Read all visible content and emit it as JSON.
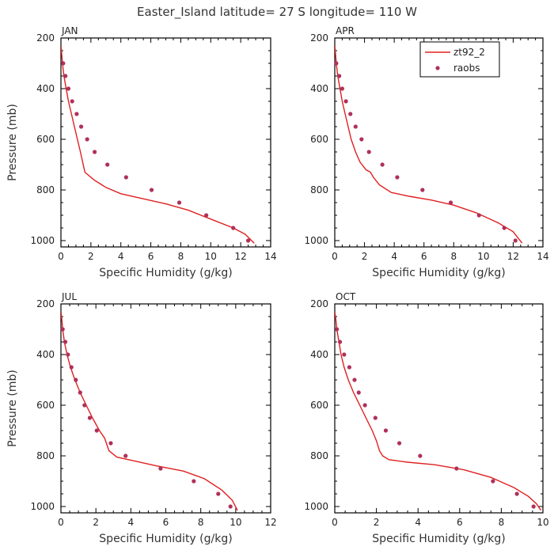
{
  "figure": {
    "title": "Easter_Island  latitude= 27 S longitude= 110 W"
  },
  "colors": {
    "model_line": "#e02020",
    "raobs": "#b0305a",
    "axis": "#000000"
  },
  "legend": {
    "panel": "APR",
    "position": "top-right",
    "entries": [
      {
        "label": "zt92_2",
        "kind": "line"
      },
      {
        "label": "raobs",
        "kind": "marker"
      }
    ]
  },
  "chart_data": [
    {
      "type": "line",
      "panel_title": "JAN",
      "xlabel": "Specific Humidity (g/kg)",
      "ylabel": "Pressure (mb)",
      "xlim": [
        0,
        14
      ],
      "ylim": [
        1025,
        200
      ],
      "xticks": [
        0,
        2,
        4,
        6,
        8,
        10,
        12,
        14
      ],
      "yticks": [
        200,
        400,
        600,
        800,
        1000
      ],
      "series": [
        {
          "name": "zt92_2",
          "kind": "line",
          "x": [
            0.0,
            0.05,
            0.1,
            0.2,
            0.35,
            0.5,
            0.7,
            0.9,
            1.1,
            1.3,
            1.6,
            2.2,
            3.0,
            4.0,
            5.5,
            7.0,
            8.5,
            10.0,
            11.5,
            12.3,
            12.9
          ],
          "y": [
            230,
            260,
            300,
            350,
            400,
            450,
            500,
            550,
            600,
            650,
            730,
            760,
            790,
            815,
            835,
            855,
            880,
            915,
            950,
            975,
            1010
          ]
        },
        {
          "name": "raobs",
          "kind": "scatter",
          "x": [
            0.15,
            0.3,
            0.5,
            0.75,
            1.05,
            1.35,
            1.75,
            2.25,
            3.1,
            4.35,
            6.05,
            7.9,
            9.7,
            11.5,
            12.5
          ],
          "y": [
            300,
            350,
            400,
            450,
            500,
            550,
            600,
            650,
            700,
            750,
            800,
            850,
            900,
            950,
            1000
          ]
        }
      ]
    },
    {
      "type": "line",
      "panel_title": "APR",
      "xlabel": "Specific Humidity (g/kg)",
      "ylabel": "",
      "xlim": [
        0,
        14
      ],
      "ylim": [
        1025,
        200
      ],
      "xticks": [
        0,
        2,
        4,
        6,
        8,
        10,
        12,
        14
      ],
      "yticks": [
        200,
        400,
        600,
        800,
        1000
      ],
      "series": [
        {
          "name": "zt92_2",
          "kind": "line",
          "x": [
            0.0,
            0.05,
            0.1,
            0.2,
            0.35,
            0.5,
            0.7,
            0.9,
            1.1,
            1.4,
            1.7,
            2.1,
            2.4,
            2.6,
            3.0,
            3.8,
            5.0,
            6.5,
            8.0,
            9.5,
            11.0,
            12.0,
            12.6
          ],
          "y": [
            230,
            260,
            300,
            350,
            400,
            450,
            500,
            550,
            600,
            650,
            690,
            720,
            730,
            750,
            780,
            810,
            825,
            840,
            860,
            890,
            930,
            965,
            1010
          ]
        },
        {
          "name": "raobs",
          "kind": "scatter",
          "x": [
            0.1,
            0.3,
            0.5,
            0.75,
            1.05,
            1.4,
            1.8,
            2.3,
            3.2,
            4.2,
            5.9,
            7.8,
            9.7,
            11.4,
            12.15
          ],
          "y": [
            300,
            350,
            400,
            450,
            500,
            550,
            600,
            650,
            700,
            750,
            800,
            850,
            900,
            950,
            1000
          ]
        }
      ]
    },
    {
      "type": "line",
      "panel_title": "JUL",
      "xlabel": "Specific Humidity (g/kg)",
      "ylabel": "Pressure (mb)",
      "xlim": [
        0,
        12
      ],
      "ylim": [
        1025,
        200
      ],
      "xticks": [
        0,
        2,
        4,
        6,
        8,
        10,
        12
      ],
      "yticks": [
        200,
        400,
        600,
        800,
        1000
      ],
      "series": [
        {
          "name": "zt92_2",
          "kind": "line",
          "x": [
            0.0,
            0.05,
            0.1,
            0.2,
            0.35,
            0.55,
            0.8,
            1.1,
            1.45,
            1.8,
            2.2,
            2.5,
            2.75,
            3.2,
            4.2,
            5.5,
            7.0,
            8.2,
            9.2,
            9.8,
            10.1
          ],
          "y": [
            230,
            260,
            300,
            350,
            400,
            450,
            500,
            550,
            600,
            650,
            700,
            730,
            780,
            805,
            820,
            840,
            860,
            890,
            935,
            975,
            1015
          ]
        },
        {
          "name": "raobs",
          "kind": "scatter",
          "x": [
            0.1,
            0.25,
            0.4,
            0.6,
            0.85,
            1.1,
            1.35,
            1.65,
            2.05,
            2.85,
            3.7,
            5.7,
            7.6,
            9.0,
            9.7
          ],
          "y": [
            300,
            350,
            400,
            450,
            500,
            550,
            600,
            650,
            700,
            750,
            800,
            850,
            900,
            950,
            1000
          ]
        }
      ]
    },
    {
      "type": "line",
      "panel_title": "OCT",
      "xlabel": "Specific Humidity (g/kg)",
      "ylabel": "",
      "xlim": [
        0,
        10
      ],
      "ylim": [
        1025,
        200
      ],
      "xticks": [
        0,
        2,
        4,
        6,
        8,
        10
      ],
      "yticks": [
        200,
        400,
        600,
        800,
        1000
      ],
      "series": [
        {
          "name": "zt92_2",
          "kind": "line",
          "x": [
            0.0,
            0.05,
            0.1,
            0.2,
            0.3,
            0.45,
            0.65,
            0.9,
            1.2,
            1.5,
            1.8,
            2.0,
            2.15,
            2.3,
            2.6,
            3.5,
            4.8,
            6.2,
            7.5,
            8.6,
            9.3,
            9.7,
            9.9
          ],
          "y": [
            230,
            260,
            300,
            350,
            400,
            450,
            500,
            550,
            600,
            650,
            700,
            740,
            780,
            800,
            815,
            825,
            835,
            855,
            885,
            925,
            960,
            990,
            1015
          ]
        },
        {
          "name": "raobs",
          "kind": "scatter",
          "x": [
            0.1,
            0.25,
            0.45,
            0.7,
            0.95,
            1.15,
            1.45,
            1.95,
            2.45,
            3.1,
            4.1,
            5.85,
            7.6,
            8.75,
            9.55
          ],
          "y": [
            300,
            350,
            400,
            450,
            500,
            550,
            600,
            650,
            700,
            750,
            800,
            850,
            900,
            950,
            1000
          ]
        }
      ]
    }
  ]
}
